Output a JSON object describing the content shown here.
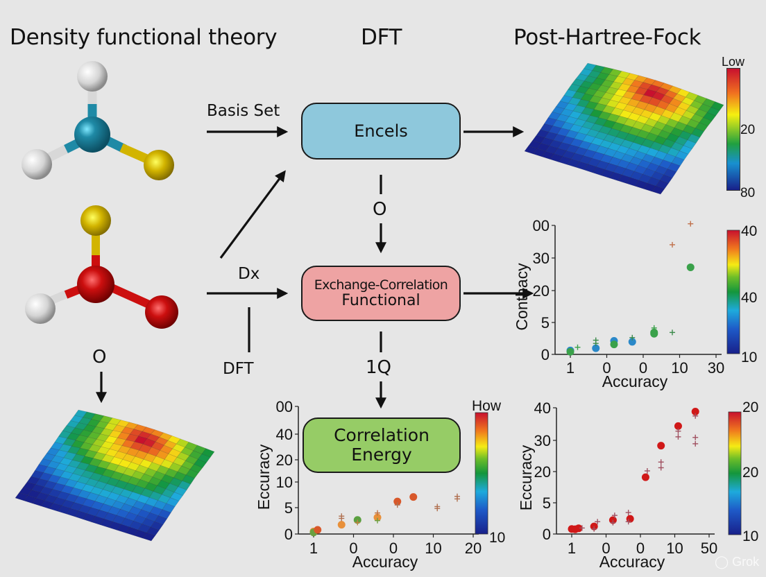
{
  "headers": {
    "left": "Density functional theory",
    "center": "DFT",
    "right": "Post-Hartree-Fock"
  },
  "flow": {
    "box_top": {
      "label": "Encels",
      "color": "#8ec8dc"
    },
    "box_middle": {
      "line1": "Exchange-Correlation",
      "line2": "Functional",
      "color": "#eea3a3"
    },
    "box_bottom": {
      "line1": "Correlation",
      "line2": "Energy",
      "color": "#96cc66"
    },
    "labels": {
      "basis_set": "Basis Set",
      "dx": "Dx",
      "dft_small": "DFT",
      "o_top": "O",
      "one_q": "1Q",
      "o_left": "O"
    }
  },
  "molecules": {
    "top": {
      "center_color": "#1f8aa6",
      "atoms": [
        "#dcdcdc",
        "#dcdcdc",
        "#d2b400"
      ]
    },
    "middle": {
      "center_color": "#cc0f0f",
      "atoms": [
        "#d2b400",
        "#dcdcdc",
        "#cc0f0f"
      ]
    }
  },
  "surface_top_right": {
    "colorbar": {
      "top_label": "Low",
      "mid_label": "20",
      "bottom_label": "80"
    }
  },
  "surface_bottom_left": {},
  "watermark": "Grok",
  "chart_data": [
    {
      "id": "scatter-right-middle",
      "type": "scatter",
      "title": "",
      "xlabel": "Accuracy",
      "ylabel": "Conthacy",
      "x_tick_labels": [
        "1",
        "0",
        "0",
        "10",
        "30"
      ],
      "y_tick_labels": [
        "0",
        "5",
        "20",
        "30",
        "00"
      ],
      "colorbar": {
        "labels": [
          "40",
          "40",
          "10"
        ]
      },
      "points": [
        {
          "x": 1.0,
          "y": 1.2,
          "color": "#2a88c8",
          "marker": "circle"
        },
        {
          "x": 1.0,
          "y": 0.8,
          "color": "#3aa14a",
          "marker": "circle"
        },
        {
          "x": 1.2,
          "y": 2.2,
          "color": "#3aa14a",
          "marker": "plus"
        },
        {
          "x": 1.7,
          "y": 1.9,
          "color": "#2a88c8",
          "marker": "circle"
        },
        {
          "x": 1.7,
          "y": 4.4,
          "color": "#3a8a4a",
          "marker": "plus"
        },
        {
          "x": 1.7,
          "y": 3.4,
          "color": "#3a8a4a",
          "marker": "plus"
        },
        {
          "x": 2.2,
          "y": 4.2,
          "color": "#2a88c8",
          "marker": "circle"
        },
        {
          "x": 2.2,
          "y": 3.1,
          "color": "#3aa14a",
          "marker": "circle"
        },
        {
          "x": 2.7,
          "y": 3.9,
          "color": "#2a88c8",
          "marker": "circle"
        },
        {
          "x": 2.7,
          "y": 5.2,
          "color": "#3a8a4a",
          "marker": "plus"
        },
        {
          "x": 3.3,
          "y": 6.8,
          "color": "#3aa14a",
          "marker": "circle"
        },
        {
          "x": 3.3,
          "y": 8.2,
          "color": "#3aa14a",
          "marker": "plus"
        },
        {
          "x": 3.3,
          "y": 6.4,
          "color": "#3aa14a",
          "marker": "circle"
        },
        {
          "x": 3.8,
          "y": 6.8,
          "color": "#3a8a4a",
          "marker": "plus"
        },
        {
          "x": 3.8,
          "y": 34,
          "color": "#c0704a",
          "marker": "plus"
        },
        {
          "x": 4.3,
          "y": 27,
          "color": "#3aa14a",
          "marker": "circle"
        },
        {
          "x": 4.3,
          "y": 40.5,
          "color": "#c0704a",
          "marker": "plus"
        }
      ]
    },
    {
      "id": "scatter-bottom-center",
      "type": "scatter",
      "title": "",
      "xlabel": "Accuracy",
      "ylabel": "Eccuracy",
      "x_tick_labels": [
        "1",
        "0",
        "0",
        "10",
        "20"
      ],
      "y_tick_labels": [
        "0",
        "5",
        "10",
        "20",
        "40",
        "00"
      ],
      "colorbar": {
        "labels": [
          "How",
          "10"
        ]
      },
      "points": [
        {
          "x": 1.0,
          "y": 0.8,
          "color": "#e8903a",
          "marker": "circle"
        },
        {
          "x": 1.0,
          "y": 0.5,
          "color": "#6aa040",
          "marker": "circle"
        },
        {
          "x": 1.1,
          "y": 1.3,
          "color": "#d8582a",
          "marker": "circle"
        },
        {
          "x": 1.7,
          "y": 2.9,
          "color": "#e8903a",
          "marker": "circle"
        },
        {
          "x": 1.7,
          "y": 5.6,
          "color": "#b07050",
          "marker": "plus"
        },
        {
          "x": 1.7,
          "y": 4.9,
          "color": "#b07050",
          "marker": "plus"
        },
        {
          "x": 2.1,
          "y": 4.4,
          "color": "#5aa040",
          "marker": "circle"
        },
        {
          "x": 2.1,
          "y": 3.6,
          "color": "#c08040",
          "marker": "plus"
        },
        {
          "x": 2.6,
          "y": 5.2,
          "color": "#e8903a",
          "marker": "circle"
        },
        {
          "x": 2.6,
          "y": 6.6,
          "color": "#c07040",
          "marker": "plus"
        },
        {
          "x": 2.6,
          "y": 4.2,
          "color": "#6aa040",
          "marker": "plus"
        },
        {
          "x": 3.1,
          "y": 10.2,
          "color": "#d8582a",
          "marker": "circle"
        },
        {
          "x": 3.1,
          "y": 9.1,
          "color": "#b07050",
          "marker": "plus"
        },
        {
          "x": 3.5,
          "y": 11.6,
          "color": "#d8582a",
          "marker": "circle"
        },
        {
          "x": 4.1,
          "y": 8.6,
          "color": "#b07050",
          "marker": "plus"
        },
        {
          "x": 4.1,
          "y": 8.0,
          "color": "#b07050",
          "marker": "plus"
        },
        {
          "x": 4.6,
          "y": 11.8,
          "color": "#b07050",
          "marker": "plus"
        },
        {
          "x": 4.6,
          "y": 11.0,
          "color": "#b07050",
          "marker": "plus"
        }
      ]
    },
    {
      "id": "scatter-bottom-right",
      "type": "scatter",
      "title": "",
      "xlabel": "Accuracy",
      "ylabel": "Eccuracy",
      "x_tick_labels": [
        "1",
        "0",
        "0",
        "10",
        "50"
      ],
      "y_tick_labels": [
        "0",
        "5",
        "20",
        "30",
        "40"
      ],
      "colorbar": {
        "labels": [
          "20",
          "20",
          "10"
        ]
      },
      "points": [
        {
          "x": 1.0,
          "y": 1.6,
          "color": "#d01818",
          "marker": "circle"
        },
        {
          "x": 1.1,
          "y": 1.5,
          "color": "#d01818",
          "marker": "circle"
        },
        {
          "x": 1.2,
          "y": 1.8,
          "color": "#d01818",
          "marker": "circle"
        },
        {
          "x": 1.3,
          "y": 1.9,
          "color": "#a05060",
          "marker": "plus"
        },
        {
          "x": 1.65,
          "y": 2.4,
          "color": "#d01818",
          "marker": "circle"
        },
        {
          "x": 1.65,
          "y": 1.6,
          "color": "#a05060",
          "marker": "plus"
        },
        {
          "x": 1.75,
          "y": 3.9,
          "color": "#a05060",
          "marker": "plus"
        },
        {
          "x": 2.2,
          "y": 4.4,
          "color": "#d01818",
          "marker": "circle"
        },
        {
          "x": 2.2,
          "y": 3.6,
          "color": "#a05060",
          "marker": "plus"
        },
        {
          "x": 2.25,
          "y": 5.9,
          "color": "#a05060",
          "marker": "plus"
        },
        {
          "x": 2.7,
          "y": 4.8,
          "color": "#d01818",
          "marker": "circle"
        },
        {
          "x": 2.65,
          "y": 6.8,
          "color": "#a05060",
          "marker": "plus"
        },
        {
          "x": 2.65,
          "y": 3.9,
          "color": "#a05060",
          "marker": "plus"
        },
        {
          "x": 3.15,
          "y": 18,
          "color": "#d01818",
          "marker": "circle"
        },
        {
          "x": 3.2,
          "y": 20,
          "color": "#a05060",
          "marker": "plus"
        },
        {
          "x": 3.6,
          "y": 28,
          "color": "#d01818",
          "marker": "circle"
        },
        {
          "x": 3.6,
          "y": 22.8,
          "color": "#a05060",
          "marker": "plus"
        },
        {
          "x": 3.6,
          "y": 21,
          "color": "#a05060",
          "marker": "plus"
        },
        {
          "x": 4.1,
          "y": 34.2,
          "color": "#d01818",
          "marker": "circle"
        },
        {
          "x": 4.1,
          "y": 32.6,
          "color": "#a05060",
          "marker": "plus"
        },
        {
          "x": 4.1,
          "y": 30.8,
          "color": "#a05060",
          "marker": "plus"
        },
        {
          "x": 4.6,
          "y": 38.8,
          "color": "#d01818",
          "marker": "circle"
        },
        {
          "x": 4.6,
          "y": 37.4,
          "color": "#a05060",
          "marker": "plus"
        },
        {
          "x": 4.6,
          "y": 30.6,
          "color": "#a05060",
          "marker": "plus"
        },
        {
          "x": 4.6,
          "y": 28.6,
          "color": "#a05060",
          "marker": "plus"
        }
      ]
    }
  ]
}
